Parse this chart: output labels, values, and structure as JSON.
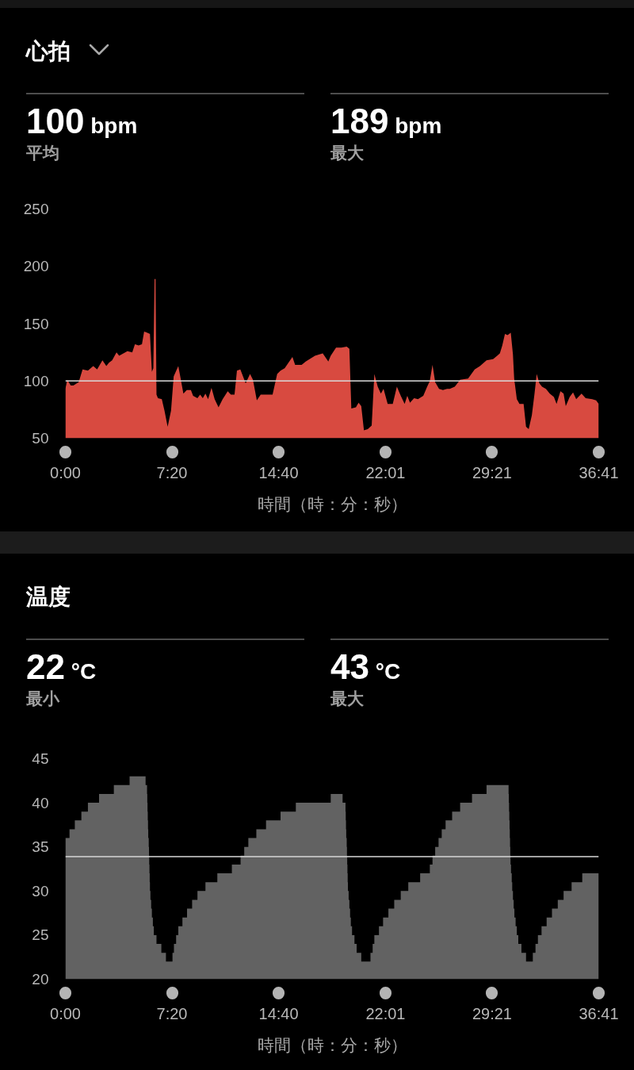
{
  "chart_data": [
    {
      "type": "area",
      "title": "心拍",
      "annotations": [
        "100 bpm",
        "平均",
        "189 bpm",
        "最大"
      ],
      "xlabel": "時間（時：分：秒）",
      "color": "#d84a40",
      "x": [
        0,
        8,
        22,
        33,
        55,
        71,
        93,
        115,
        131,
        153,
        169,
        180,
        193,
        211,
        222,
        256,
        276,
        287,
        302,
        316,
        325,
        338,
        349,
        357,
        363,
        368,
        372,
        376,
        382,
        398,
        409,
        422,
        436,
        447,
        466,
        474,
        487,
        501,
        518,
        527,
        545,
        556,
        567,
        578,
        589,
        603,
        616,
        632,
        649,
        670,
        683,
        698,
        708,
        722,
        744,
        762,
        774,
        790,
        806,
        828,
        855,
        874,
        888,
        905,
        937,
        948,
        975,
        992,
        1030,
        1062,
        1085,
        1095,
        1117,
        1139,
        1161,
        1172,
        1180,
        1199,
        1210,
        1221,
        1232,
        1248,
        1264,
        1275,
        1289,
        1302,
        1313,
        1330,
        1351,
        1368,
        1384,
        1400,
        1411,
        1422,
        1439,
        1455,
        1477,
        1493,
        1504,
        1515,
        1526,
        1542,
        1558,
        1575,
        1586,
        1607,
        1629,
        1662,
        1689,
        1711,
        1738,
        1765,
        1782,
        1793,
        1803,
        1814,
        1825,
        1838,
        1847,
        1852,
        1863,
        1874,
        1891,
        1901,
        1912,
        1925,
        1936,
        1945,
        1956,
        1967,
        1983,
        1999,
        2016,
        2027,
        2043,
        2056,
        2065,
        2081,
        2095,
        2108,
        2130,
        2147,
        2174,
        2190,
        2201
      ],
      "values": [
        93,
        101,
        96,
        96,
        99,
        110,
        109,
        113,
        110,
        118,
        113,
        116,
        118,
        125,
        122,
        126,
        125,
        132,
        131,
        132,
        143,
        142,
        141,
        108,
        111,
        189,
        189,
        88,
        85,
        84,
        74,
        60,
        74,
        104,
        113,
        104,
        89,
        92,
        92,
        87,
        85,
        88,
        85,
        89,
        84,
        94,
        84,
        77,
        84,
        91,
        88,
        88,
        109,
        110,
        98,
        106,
        101,
        83,
        88,
        88,
        88,
        106,
        109,
        111,
        121,
        114,
        114,
        117,
        122,
        124,
        117,
        122,
        129,
        129,
        130,
        128,
        76,
        77,
        81,
        78,
        57,
        58,
        61,
        106,
        95,
        89,
        93,
        80,
        80,
        95,
        87,
        80,
        87,
        81,
        85,
        84,
        87,
        95,
        100,
        114,
        99,
        93,
        92,
        93,
        93,
        95,
        101,
        102,
        110,
        113,
        118,
        119,
        122,
        124,
        131,
        141,
        140,
        142,
        123,
        102,
        84,
        80,
        80,
        60,
        58,
        70,
        89,
        106,
        98,
        95,
        93,
        89,
        86,
        80,
        91,
        89,
        78,
        86,
        90,
        84,
        89,
        85,
        84,
        83,
        80
      ],
      "xlim": [
        0,
        2201
      ],
      "xticks": [
        {
          "value": 0,
          "label": "0:00"
        },
        {
          "value": 440,
          "label": "7:20"
        },
        {
          "value": 880,
          "label": "14:40"
        },
        {
          "value": 1321,
          "label": "22:01"
        },
        {
          "value": 1761,
          "label": "29:21"
        },
        {
          "value": 2201,
          "label": "36:41"
        }
      ],
      "ylim": [
        50,
        250
      ],
      "yticks": [
        50,
        100,
        150,
        200,
        250
      ],
      "ref_lines": [
        {
          "axis": "y",
          "value": 100,
          "color": "#d9d9d9"
        }
      ]
    },
    {
      "type": "area",
      "title": "温度",
      "annotations": [
        "22 °C",
        "最小",
        "43 °C",
        "最大"
      ],
      "xlabel": "時間（時：分：秒）",
      "color": "#626262",
      "x": [
        0,
        17,
        17,
        39,
        39,
        66,
        66,
        93,
        93,
        139,
        139,
        200,
        200,
        265,
        265,
        331,
        331,
        337,
        337,
        338,
        338,
        339,
        339,
        340,
        340,
        341,
        341,
        342,
        342,
        344,
        344,
        345,
        345,
        346,
        346,
        347,
        347,
        348,
        348,
        349,
        349,
        351,
        351,
        354,
        354,
        357,
        357,
        361,
        361,
        365,
        365,
        376,
        376,
        396,
        396,
        415,
        415,
        442,
        442,
        448,
        448,
        457,
        457,
        466,
        466,
        483,
        483,
        502,
        502,
        523,
        523,
        545,
        545,
        578,
        578,
        627,
        627,
        687,
        687,
        723,
        723,
        738,
        738,
        755,
        755,
        788,
        788,
        828,
        828,
        888,
        888,
        951,
        951,
        1095,
        1095,
        1144,
        1144,
        1156,
        1156,
        1157,
        1157,
        1158,
        1158,
        1159,
        1159,
        1161,
        1161,
        1162,
        1162,
        1163,
        1163,
        1164,
        1164,
        1165,
        1165,
        1166,
        1166,
        1169,
        1169,
        1172,
        1172,
        1175,
        1175,
        1178,
        1178,
        1183,
        1183,
        1193,
        1193,
        1202,
        1202,
        1221,
        1221,
        1259,
        1259,
        1268,
        1268,
        1275,
        1275,
        1294,
        1294,
        1311,
        1311,
        1333,
        1333,
        1357,
        1357,
        1384,
        1384,
        1415,
        1415,
        1464,
        1464,
        1504,
        1504,
        1515,
        1515,
        1526,
        1526,
        1540,
        1540,
        1553,
        1553,
        1569,
        1569,
        1596,
        1596,
        1629,
        1629,
        1678,
        1678,
        1738,
        1738,
        1829,
        1829,
        1830,
        1830,
        1831,
        1831,
        1832,
        1832,
        1833,
        1833,
        1834,
        1834,
        1835,
        1835,
        1836,
        1836,
        1837,
        1837,
        1839,
        1839,
        1842,
        1842,
        1844,
        1844,
        1847,
        1847,
        1850,
        1850,
        1853,
        1853,
        1858,
        1858,
        1863,
        1863,
        1869,
        1869,
        1882,
        1882,
        1901,
        1901,
        1929,
        1929,
        1940,
        1940,
        1950,
        1950,
        1965,
        1965,
        1986,
        1986,
        2008,
        2008,
        2032,
        2032,
        2056,
        2056,
        2089,
        2089,
        2133,
        2133,
        2201
      ],
      "values": [
        36,
        36,
        37,
        37,
        38,
        38,
        39,
        39,
        40,
        40,
        41,
        41,
        42,
        42,
        43,
        43,
        42,
        42,
        41,
        41,
        40,
        40,
        39,
        39,
        38,
        38,
        37,
        37,
        36,
        36,
        35,
        35,
        34,
        34,
        33,
        33,
        32,
        32,
        31,
        31,
        30,
        30,
        29,
        29,
        28,
        28,
        27,
        27,
        26,
        26,
        25,
        25,
        24,
        24,
        23,
        23,
        22,
        22,
        23,
        23,
        24,
        24,
        25,
        25,
        26,
        26,
        27,
        27,
        28,
        28,
        29,
        29,
        30,
        30,
        31,
        31,
        32,
        32,
        33,
        33,
        34,
        34,
        35,
        35,
        36,
        36,
        37,
        37,
        38,
        38,
        39,
        39,
        40,
        40,
        41,
        41,
        40,
        40,
        39,
        39,
        38,
        38,
        37,
        37,
        36,
        36,
        35,
        35,
        34,
        34,
        33,
        33,
        32,
        32,
        31,
        31,
        30,
        30,
        29,
        29,
        28,
        28,
        27,
        27,
        26,
        26,
        25,
        25,
        24,
        24,
        23,
        23,
        22,
        22,
        23,
        23,
        24,
        24,
        25,
        25,
        26,
        26,
        27,
        27,
        28,
        28,
        29,
        29,
        30,
        30,
        31,
        31,
        32,
        32,
        33,
        33,
        34,
        34,
        35,
        35,
        36,
        36,
        37,
        37,
        38,
        38,
        39,
        39,
        40,
        40,
        41,
        41,
        42,
        42,
        41,
        41,
        40,
        40,
        39,
        39,
        38,
        38,
        37,
        37,
        36,
        36,
        35,
        35,
        34,
        34,
        33,
        33,
        32,
        32,
        31,
        31,
        30,
        30,
        29,
        29,
        28,
        28,
        27,
        27,
        26,
        26,
        25,
        25,
        24,
        24,
        23,
        23,
        22,
        22,
        23,
        23,
        24,
        24,
        25,
        25,
        26,
        26,
        27,
        27,
        28,
        28,
        29,
        29,
        30,
        30,
        31,
        31,
        32,
        32
      ],
      "xlim": [
        0,
        2201
      ],
      "xticks": [
        {
          "value": 0,
          "label": "0:00"
        },
        {
          "value": 440,
          "label": "7:20"
        },
        {
          "value": 880,
          "label": "14:40"
        },
        {
          "value": 1321,
          "label": "22:01"
        },
        {
          "value": 1761,
          "label": "29:21"
        },
        {
          "value": 2201,
          "label": "36:41"
        }
      ],
      "ylim": [
        20,
        45
      ],
      "yticks": [
        20,
        25,
        30,
        35,
        40,
        45
      ],
      "ref_lines": [
        {
          "axis": "y",
          "value": 33.9,
          "color": "#d9d9d9"
        }
      ]
    }
  ]
}
